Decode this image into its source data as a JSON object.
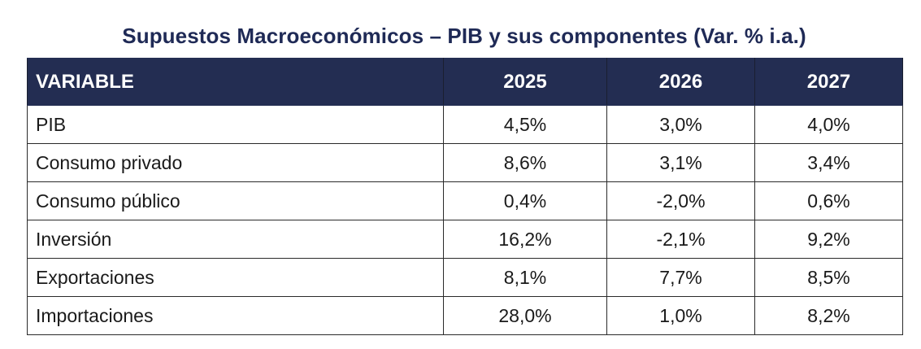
{
  "title": "Supuestos Macroeconómicos – PIB y sus componentes (Var. % i.a.)",
  "table": {
    "headers": [
      "VARIABLE",
      "2025",
      "2026",
      "2027"
    ],
    "rows": [
      {
        "variable": "PIB",
        "values": [
          "4,5%",
          "3,0%",
          "4,0%"
        ]
      },
      {
        "variable": "Consumo privado",
        "values": [
          "8,6%",
          "3,1%",
          "3,4%"
        ]
      },
      {
        "variable": "Consumo público",
        "values": [
          "0,4%",
          "-2,0%",
          "0,6%"
        ]
      },
      {
        "variable": "Inversión",
        "values": [
          "16,2%",
          "-2,1%",
          "9,2%"
        ]
      },
      {
        "variable": "Exportaciones",
        "values": [
          "8,1%",
          "7,7%",
          "8,5%"
        ]
      },
      {
        "variable": "Importaciones",
        "values": [
          "28,0%",
          "1,0%",
          "8,2%"
        ]
      }
    ]
  },
  "colors": {
    "title": "#1f2a56",
    "header_bg": "#232d52",
    "header_text": "#ffffff",
    "border": "#2a2a2a"
  }
}
